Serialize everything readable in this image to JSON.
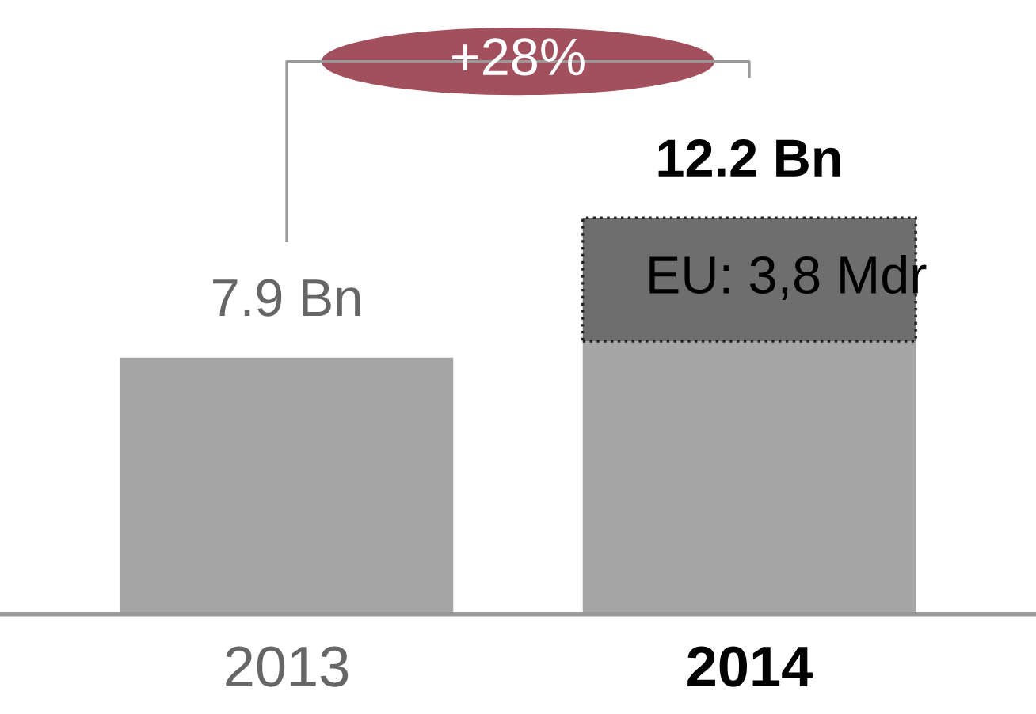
{
  "chart_data": {
    "type": "bar",
    "stacked": true,
    "categories": [
      "2013",
      "2014"
    ],
    "series": [
      {
        "color": "#a6a6a6",
        "values": [
          7.9,
          8.4
        ]
      },
      {
        "color": "#6e6e6e",
        "values": [
          null,
          3.8
        ],
        "value_labels": [
          null,
          "EU: 3,8 Mdr"
        ]
      }
    ],
    "totals": [
      "7.9 Bn",
      "12.2 Bn"
    ],
    "annotations": [
      "+28%"
    ],
    "grid": false,
    "legend": false
  }
}
